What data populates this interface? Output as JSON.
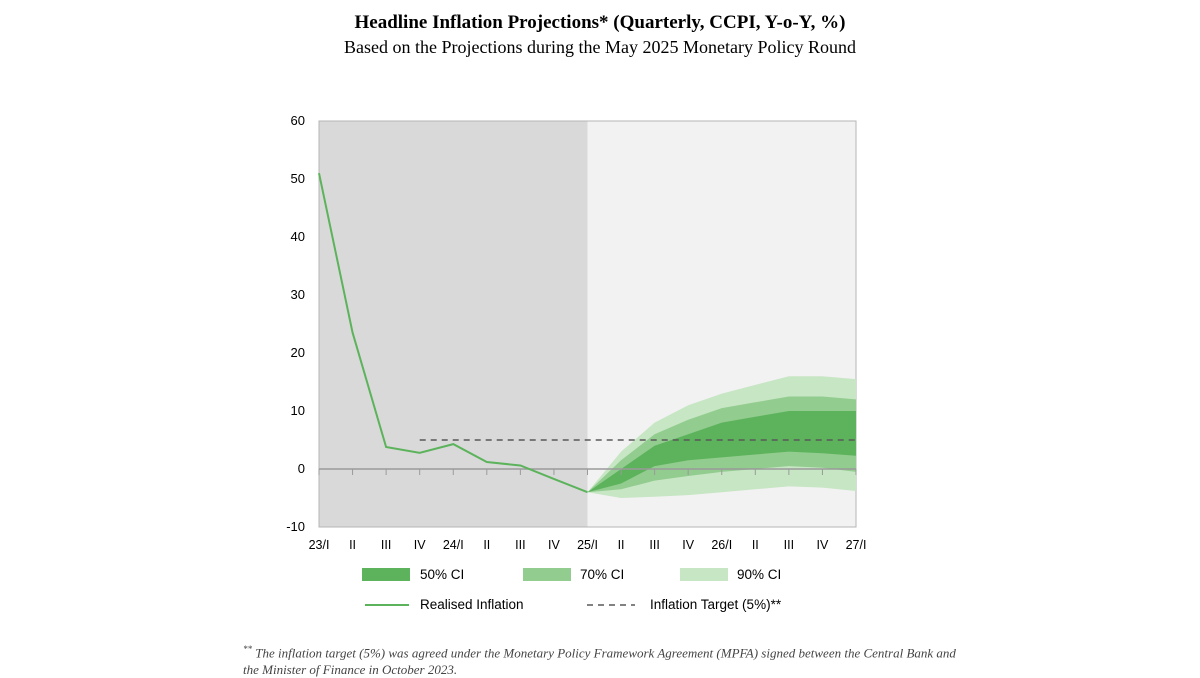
{
  "title": "Headline Inflation Projections* (Quarterly, CCPI, Y-o-Y, %)",
  "subtitle": "Based on the Projections during the May 2025 Monetary Policy Round",
  "footnote": {
    "marker": "**",
    "text": "The inflation target (5%) was agreed under the Monetary Policy Framework Agreement (MPFA) signed between the Central Bank and the Minister of Finance in October 2023."
  },
  "colors": {
    "history_bg": "#d9d9d9",
    "projection_bg": "#f2f2f2",
    "ci50": "#5cb35c",
    "ci70": "#92cc8f",
    "ci90": "#c7e6c4",
    "line": "#5cb35c",
    "target": "#595959"
  },
  "chart_data": {
    "type": "line",
    "categories": [
      "23/I",
      "II",
      "III",
      "IV",
      "24/I",
      "II",
      "III",
      "IV",
      "25/I",
      "II",
      "III",
      "IV",
      "26/I",
      "II",
      "III",
      "IV",
      "27/I"
    ],
    "ylim": [
      -10,
      60
    ],
    "yticks": [
      -10,
      0,
      10,
      20,
      30,
      40,
      50,
      60
    ],
    "projection_start_index": 8,
    "grid": false,
    "legend_position": "bottom",
    "series": [
      {
        "name": "Realised Inflation",
        "style": "solid",
        "values": [
          51,
          23.5,
          3.8,
          2.8,
          4.3,
          1.2,
          0.6,
          -1.7,
          -4,
          null,
          null,
          null,
          null,
          null,
          null,
          null,
          null
        ]
      },
      {
        "name": "Inflation Target (5%)**",
        "style": "dashed",
        "values": [
          null,
          null,
          null,
          5,
          5,
          5,
          5,
          5,
          5,
          5,
          5,
          5,
          5,
          5,
          5,
          5,
          5
        ]
      }
    ],
    "bands": [
      {
        "name": "90% CI",
        "x_index": [
          8,
          9,
          10,
          11,
          12,
          13,
          14,
          15,
          16
        ],
        "lower": [
          -4,
          -5,
          -4.8,
          -4.5,
          -4,
          -3.5,
          -3,
          -3.2,
          -3.8
        ],
        "upper": [
          -4,
          3,
          8,
          11,
          13,
          14.5,
          16,
          16,
          15.5
        ]
      },
      {
        "name": "70% CI",
        "x_index": [
          8,
          9,
          10,
          11,
          12,
          13,
          14,
          15,
          16
        ],
        "lower": [
          -4,
          -3.5,
          -2,
          -1.2,
          -0.5,
          0,
          0.5,
          0.2,
          -0.5
        ],
        "upper": [
          -4,
          1.5,
          6,
          8.5,
          10.5,
          11.5,
          12.5,
          12.5,
          12
        ]
      },
      {
        "name": "50% CI",
        "x_index": [
          8,
          9,
          10,
          11,
          12,
          13,
          14,
          15,
          16
        ],
        "lower": [
          -4,
          -2.5,
          0.5,
          1.5,
          2,
          2.5,
          3,
          2.7,
          2.3
        ],
        "upper": [
          -4,
          0,
          4,
          6,
          8,
          9,
          10,
          10,
          10
        ]
      }
    ],
    "legend": [
      {
        "label": "50% CI",
        "kind": "box",
        "color_key": "ci50"
      },
      {
        "label": "70% CI",
        "kind": "box",
        "color_key": "ci70"
      },
      {
        "label": "90% CI",
        "kind": "box",
        "color_key": "ci90"
      },
      {
        "label": "Realised Inflation",
        "kind": "line",
        "color_key": "line"
      },
      {
        "label": "Inflation Target (5%)**",
        "kind": "dash",
        "color_key": "target"
      }
    ]
  }
}
